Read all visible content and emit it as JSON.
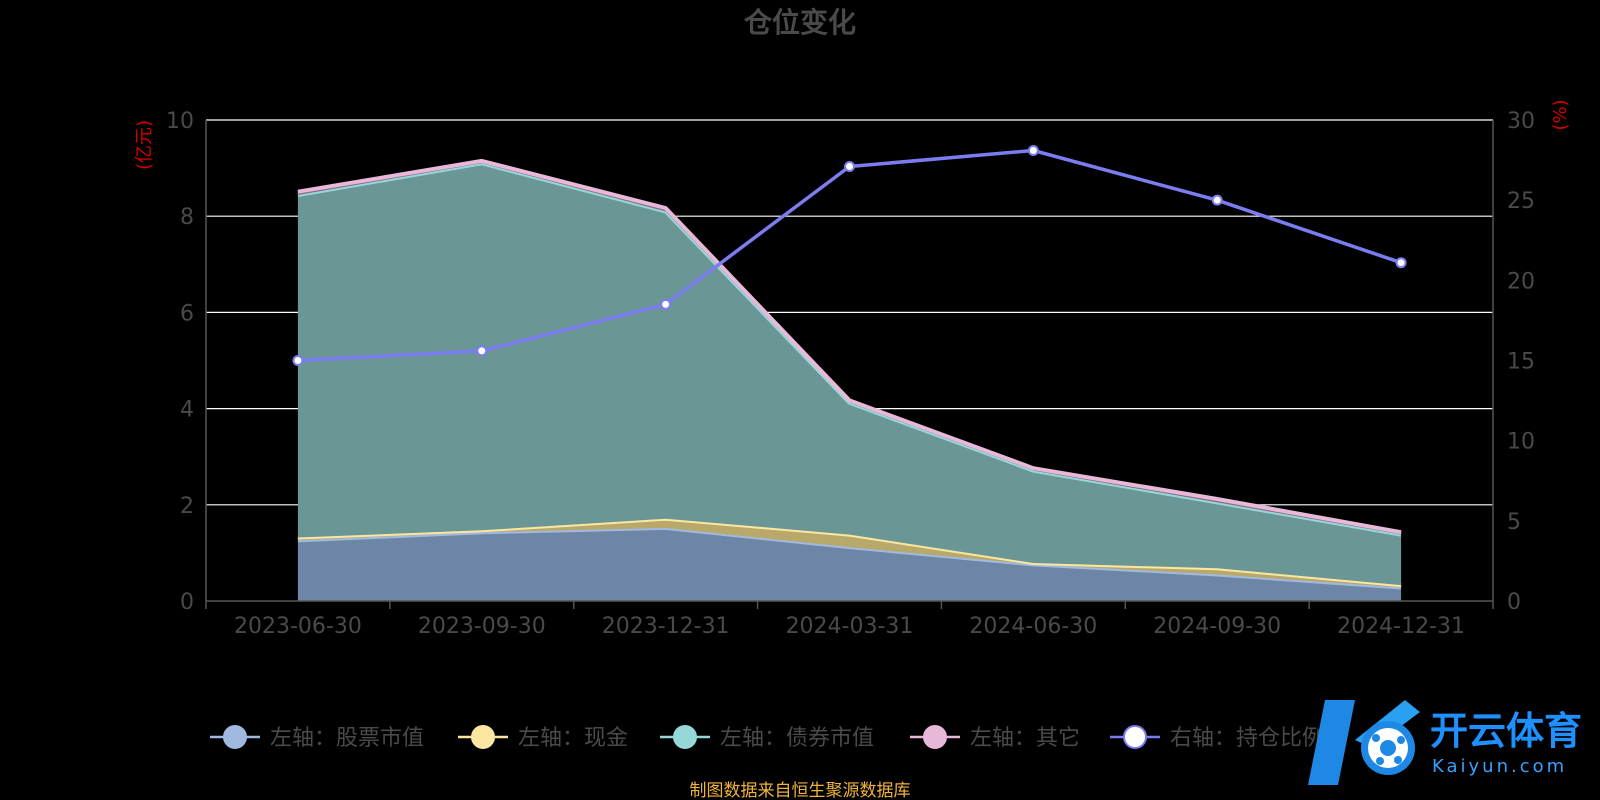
{
  "chart_data": {
    "type": "area",
    "title": "仓位变化",
    "categories": [
      "2023-06-30",
      "2023-09-30",
      "2023-12-31",
      "2024-03-31",
      "2024-06-30",
      "2024-09-30",
      "2024-12-31"
    ],
    "left_axis": {
      "unit": "(亿元)",
      "range": [
        0,
        10
      ],
      "ticks": [
        "0",
        "2",
        "4",
        "6",
        "8",
        "10"
      ]
    },
    "right_axis": {
      "unit": "(%)",
      "range": [
        0,
        30
      ],
      "ticks": [
        "0",
        "5",
        "10",
        "15",
        "20",
        "25",
        "30"
      ]
    },
    "grid": true,
    "legend_position": "bottom",
    "series": [
      {
        "name": "左轴：股票市值",
        "axis": "left",
        "stacked": true,
        "color": "#9fb9e0",
        "fill": "#6e86a6",
        "values": [
          1.26,
          1.43,
          1.52,
          1.12,
          0.76,
          0.55,
          0.28
        ]
      },
      {
        "name": "左轴：现金",
        "axis": "left",
        "stacked": true,
        "color": "#fbe6a2",
        "fill": "#b8a96a",
        "values": [
          0.06,
          0.04,
          0.19,
          0.26,
          0.03,
          0.13,
          0.05
        ]
      },
      {
        "name": "左轴：债券市值",
        "axis": "left",
        "stacked": true,
        "color": "#96d8d8",
        "fill": "#6a9696",
        "values": [
          7.12,
          7.63,
          6.39,
          2.74,
          1.92,
          1.37,
          1.05
        ]
      },
      {
        "name": "左轴：其它",
        "axis": "left",
        "stacked": true,
        "color": "#e8b8d8",
        "fill": "#8a6a86",
        "values": [
          0.07,
          0.05,
          0.07,
          0.05,
          0.05,
          0.07,
          0.05
        ]
      },
      {
        "name": "右轴：持仓比例",
        "axis": "right",
        "type": "line",
        "color": "#7b7cf0",
        "values": [
          15.0,
          15.6,
          18.5,
          27.1,
          28.1,
          25.0,
          21.1
        ]
      }
    ],
    "source": "制图数据来自恒生聚源数据库"
  },
  "colors": {
    "grid": "#ffffff",
    "axis": "#555555",
    "text": "#4a4a4a",
    "unit": "#d40000",
    "source": "#f0b43c"
  },
  "watermark": {
    "name": "开云体育",
    "sub": "Kaiyun.com"
  }
}
